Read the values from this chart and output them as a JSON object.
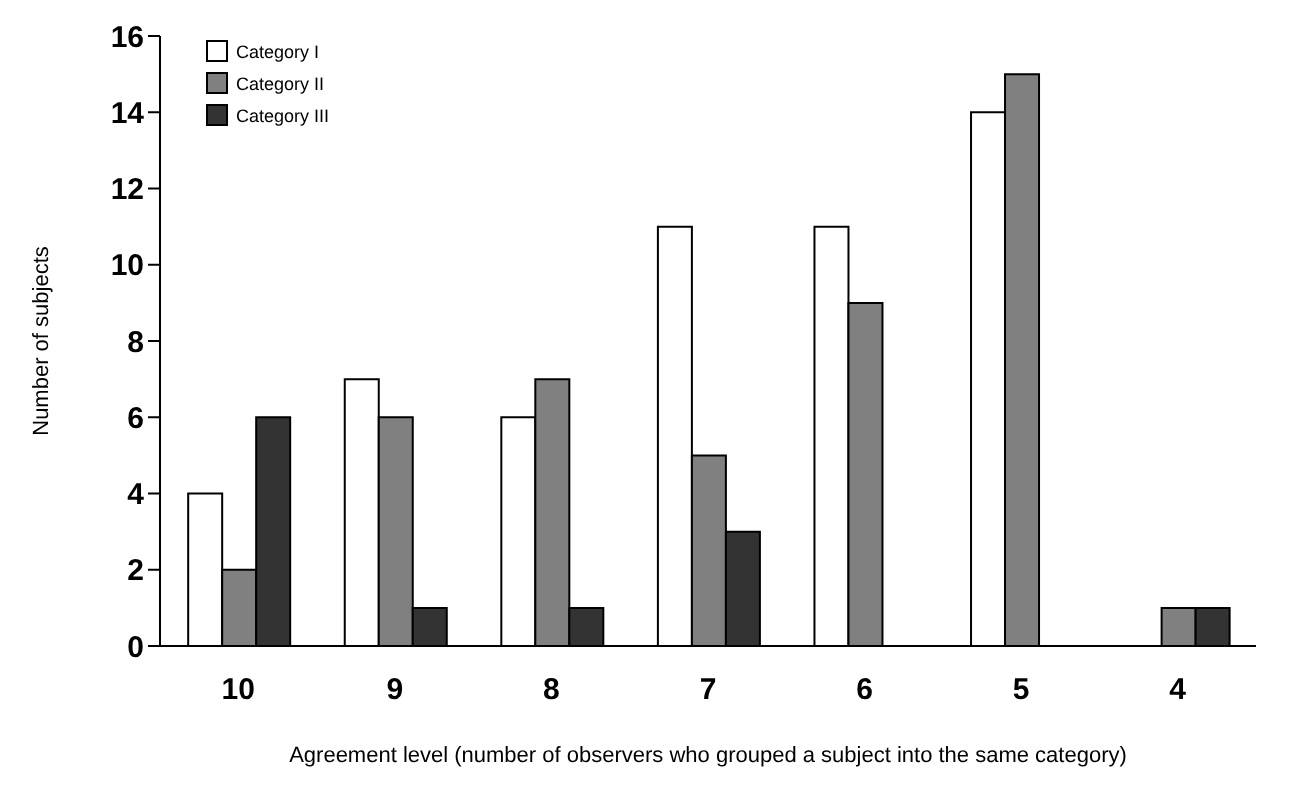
{
  "chart_data": {
    "type": "bar",
    "ylabel": "Number of subjects",
    "xlabel": "Agreement level (number of observers who grouped a subject into the same category)",
    "categories": [
      "10",
      "9",
      "8",
      "7",
      "6",
      "5",
      "4"
    ],
    "series": [
      {
        "name": "Category I",
        "color": "#ffffff",
        "values": [
          4,
          7,
          6,
          11,
          11,
          14,
          0
        ]
      },
      {
        "name": "Category II",
        "color": "#808080",
        "values": [
          2,
          6,
          7,
          5,
          9,
          15,
          1
        ]
      },
      {
        "name": "Category III",
        "color": "#333333",
        "values": [
          6,
          1,
          1,
          3,
          0,
          0,
          1
        ]
      }
    ],
    "ylim": [
      0,
      16
    ],
    "yticks": [
      0,
      2,
      4,
      6,
      8,
      10,
      12,
      14,
      16
    ],
    "grid": false,
    "legend": "top left"
  }
}
